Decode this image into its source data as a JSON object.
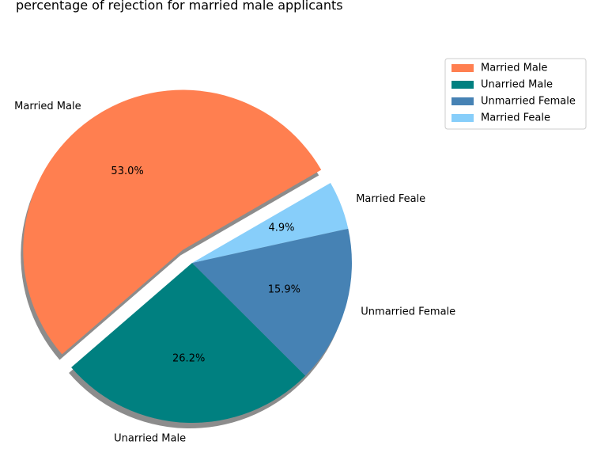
{
  "chart_data": {
    "type": "pie",
    "title": "percentage of rejection for married male applicants",
    "start_angle_deg": 30,
    "shadow": true,
    "legend_position": "top-right",
    "slices": [
      {
        "label": "Married Male",
        "value": 53.0,
        "pct_label": "53.0%",
        "color": "#FF7F50",
        "explode": 0.1
      },
      {
        "label": "Unarried Male",
        "value": 26.2,
        "pct_label": "26.2%",
        "color": "#008080",
        "explode": 0
      },
      {
        "label": "Unmarried Female",
        "value": 15.9,
        "pct_label": "15.9%",
        "color": "#4682B4",
        "explode": 0
      },
      {
        "label": "Married Feale",
        "value": 4.9,
        "pct_label": "4.9%",
        "color": "#87CEFA",
        "explode": 0
      }
    ],
    "legend": [
      "Married Male",
      "Unarried Male",
      "Unmarried Female",
      "Married Feale"
    ]
  }
}
